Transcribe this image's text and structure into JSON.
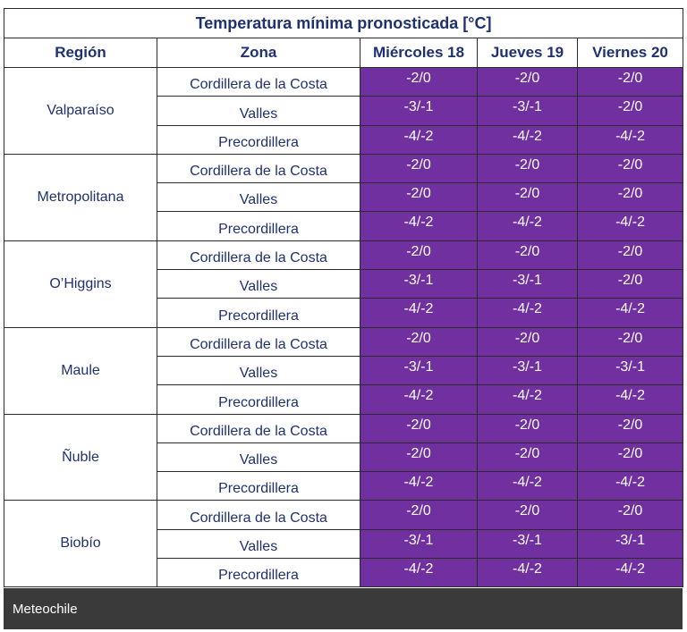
{
  "title": "Temperatura mínima pronosticada [°C]",
  "headers": [
    "Región",
    "Zona",
    "Miércoles 18",
    "Jueves 19",
    "Viernes 20"
  ],
  "regions": [
    {
      "name": "Valparaíso",
      "rows": [
        {
          "zone": "Cordillera de la Costa",
          "values": [
            "-2/0",
            "-2/0",
            "-2/0"
          ]
        },
        {
          "zone": "Valles",
          "values": [
            "-3/-1",
            "-3/-1",
            "-2/0"
          ]
        },
        {
          "zone": "Precordillera",
          "values": [
            "-4/-2",
            "-4/-2",
            "-4/-2"
          ]
        }
      ]
    },
    {
      "name": "Metropolitana",
      "rows": [
        {
          "zone": "Cordillera de la Costa",
          "values": [
            "-2/0",
            "-2/0",
            "-2/0"
          ]
        },
        {
          "zone": "Valles",
          "values": [
            "-2/0",
            "-2/0",
            "-2/0"
          ]
        },
        {
          "zone": "Precordillera",
          "values": [
            "-4/-2",
            "-4/-2",
            "-4/-2"
          ]
        }
      ]
    },
    {
      "name": "O’Higgins",
      "rows": [
        {
          "zone": "Cordillera de la Costa",
          "values": [
            "-2/0",
            "-2/0",
            "-2/0"
          ]
        },
        {
          "zone": "Valles",
          "values": [
            "-3/-1",
            "-3/-1",
            "-2/0"
          ]
        },
        {
          "zone": "Precordillera",
          "values": [
            "-4/-2",
            "-4/-2",
            "-4/-2"
          ]
        }
      ]
    },
    {
      "name": "Maule",
      "rows": [
        {
          "zone": "Cordillera de la Costa",
          "values": [
            "-2/0",
            "-2/0",
            "-2/0"
          ]
        },
        {
          "zone": "Valles",
          "values": [
            "-3/-1",
            "-3/-1",
            "-3/-1"
          ]
        },
        {
          "zone": "Precordillera",
          "values": [
            "-4/-2",
            "-4/-2",
            "-4/-2"
          ]
        }
      ]
    },
    {
      "name": "Ñuble",
      "rows": [
        {
          "zone": "Cordillera de la Costa",
          "values": [
            "-2/0",
            "-2/0",
            "-2/0"
          ]
        },
        {
          "zone": "Valles",
          "values": [
            "-2/0",
            "-2/0",
            "-2/0"
          ]
        },
        {
          "zone": "Precordillera",
          "values": [
            "-4/-2",
            "-4/-2",
            "-4/-2"
          ]
        }
      ]
    },
    {
      "name": "Biobío",
      "rows": [
        {
          "zone": "Cordillera de la Costa",
          "values": [
            "-2/0",
            "-2/0",
            "-2/0"
          ]
        },
        {
          "zone": "Valles",
          "values": [
            "-3/-1",
            "-3/-1",
            "-3/-1"
          ]
        },
        {
          "zone": "Precordillera",
          "values": [
            "-4/-2",
            "-4/-2",
            "-4/-2"
          ]
        }
      ]
    }
  ],
  "colors": {
    "header_text": "#1f3170",
    "value_background": "#7030a0",
    "footer_background": "#3a3a3a"
  },
  "footer": {
    "caption": "Meteochile"
  }
}
